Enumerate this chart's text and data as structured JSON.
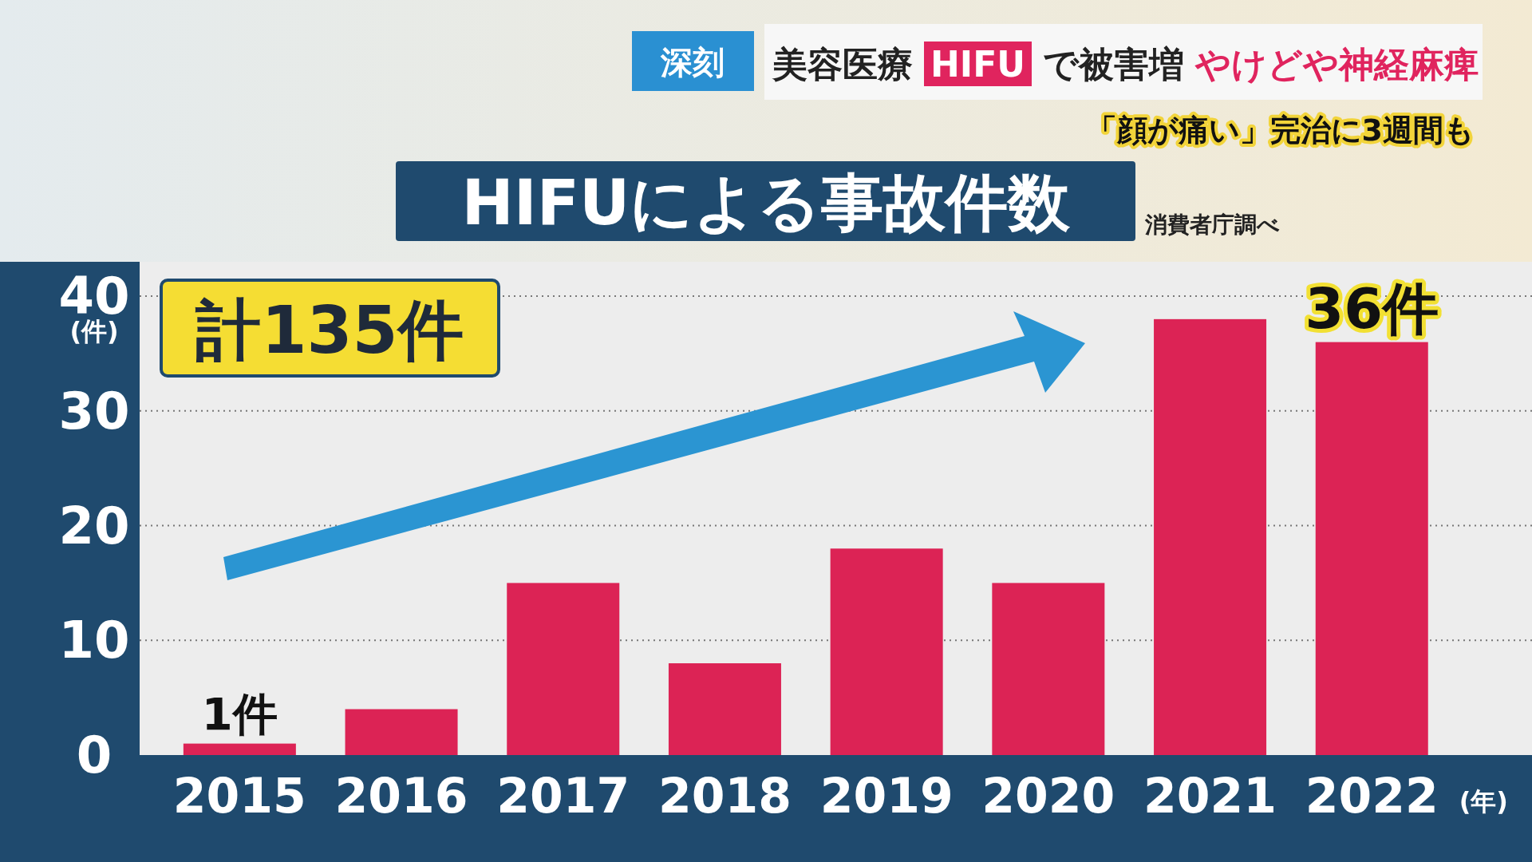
{
  "chart_data": {
    "type": "bar",
    "title": "HIFUによる事故件数",
    "categories": [
      "2015",
      "2016",
      "2017",
      "2018",
      "2019",
      "2020",
      "2021",
      "2022"
    ],
    "values": [
      1,
      4,
      15,
      8,
      18,
      15,
      38,
      36
    ],
    "value_labels": [
      "1件",
      null,
      null,
      null,
      null,
      null,
      null,
      "36件"
    ],
    "color": "#dc2355",
    "ylabel": "(件)",
    "xlabel": "(年)",
    "ylim": [
      0,
      43
    ],
    "yticks": [
      0,
      10,
      20,
      30,
      40
    ],
    "grid": "y",
    "annotations": [
      "深刻",
      "美容医療",
      "HIFU",
      "で被害増",
      "やけどや神経麻痺",
      "「顔が痛い」完治に3週間も",
      "消費者庁調べ",
      "計135件"
    ]
  }
}
